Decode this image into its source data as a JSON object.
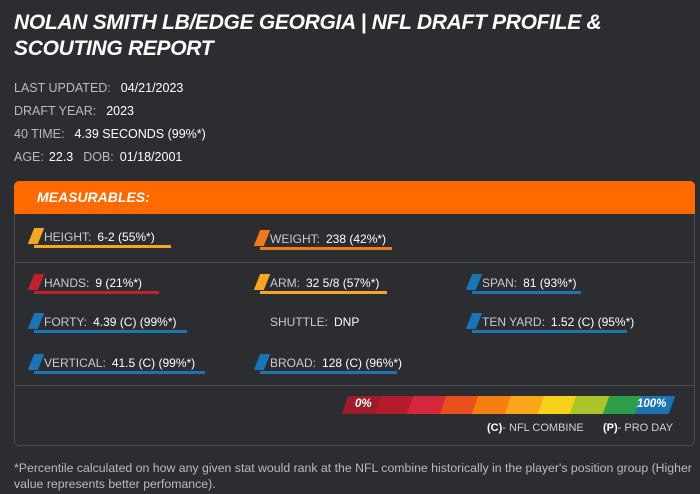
{
  "title": "NOLAN SMITH LB/EDGE GEORGIA | NFL DRAFT PROFILE & SCOUTING REPORT",
  "info": {
    "last_updated_label": "LAST UPDATED:",
    "last_updated": "04/21/2023",
    "draft_year_label": "DRAFT YEAR:",
    "draft_year": "2023",
    "forty_time_label": "40 TIME:",
    "forty_time": "4.39 SECONDS (99%*)",
    "age_label": "AGE:",
    "age": "22.3",
    "dob_label": "DOB:",
    "dob": "01/18/2001"
  },
  "measurables": {
    "header": "MEASURABLES:",
    "items": {
      "height": {
        "label": "HEIGHT:",
        "value": "6-2 (55%*)",
        "color": "#f5a623"
      },
      "weight": {
        "label": "WEIGHT:",
        "value": "238 (42%*)",
        "color": "#f07a1a"
      },
      "hands": {
        "label": "HANDS:",
        "value": "9 (21%*)",
        "color": "#c2202d"
      },
      "arm": {
        "label": "ARM:",
        "value": "32 5/8 (57%*)",
        "color": "#f5a623"
      },
      "span": {
        "label": "SPAN:",
        "value": "81 (93%*)",
        "color": "#1a74b5"
      },
      "forty": {
        "label": "FORTY:",
        "value": "4.39 (C) (99%*)",
        "color": "#1a74b5"
      },
      "shuttle": {
        "label": "SHUTTLE:",
        "value": "DNP"
      },
      "ten_yard": {
        "label": "TEN YARD:",
        "value": "1.52 (C) (95%*)",
        "color": "#1a74b5"
      },
      "vertical": {
        "label": "VERTICAL:",
        "value": "41.5 (C) (99%*)",
        "color": "#1a74b5"
      },
      "broad": {
        "label": "BROAD:",
        "value": "128 (C) (96%*)",
        "color": "#1a74b5"
      }
    },
    "scale": {
      "min_label": "0%",
      "max_label": "100%",
      "colors": [
        "#9e1b2a",
        "#b31c2c",
        "#d4283a",
        "#e8501e",
        "#f5800f",
        "#f9a61b",
        "#f6d21d",
        "#a9c52a",
        "#2e9e4a",
        "#1a74b5"
      ]
    },
    "legend": {
      "combine_code": "(C)",
      "combine_text": "- NFL COMBINE",
      "proday_code": "(P)",
      "proday_text": "- PRO DAY"
    }
  },
  "footnote": "*Percentile calculated on how any given stat would rank at the NFL combine historically in the player's position group (Higher value represents better perfomance)."
}
